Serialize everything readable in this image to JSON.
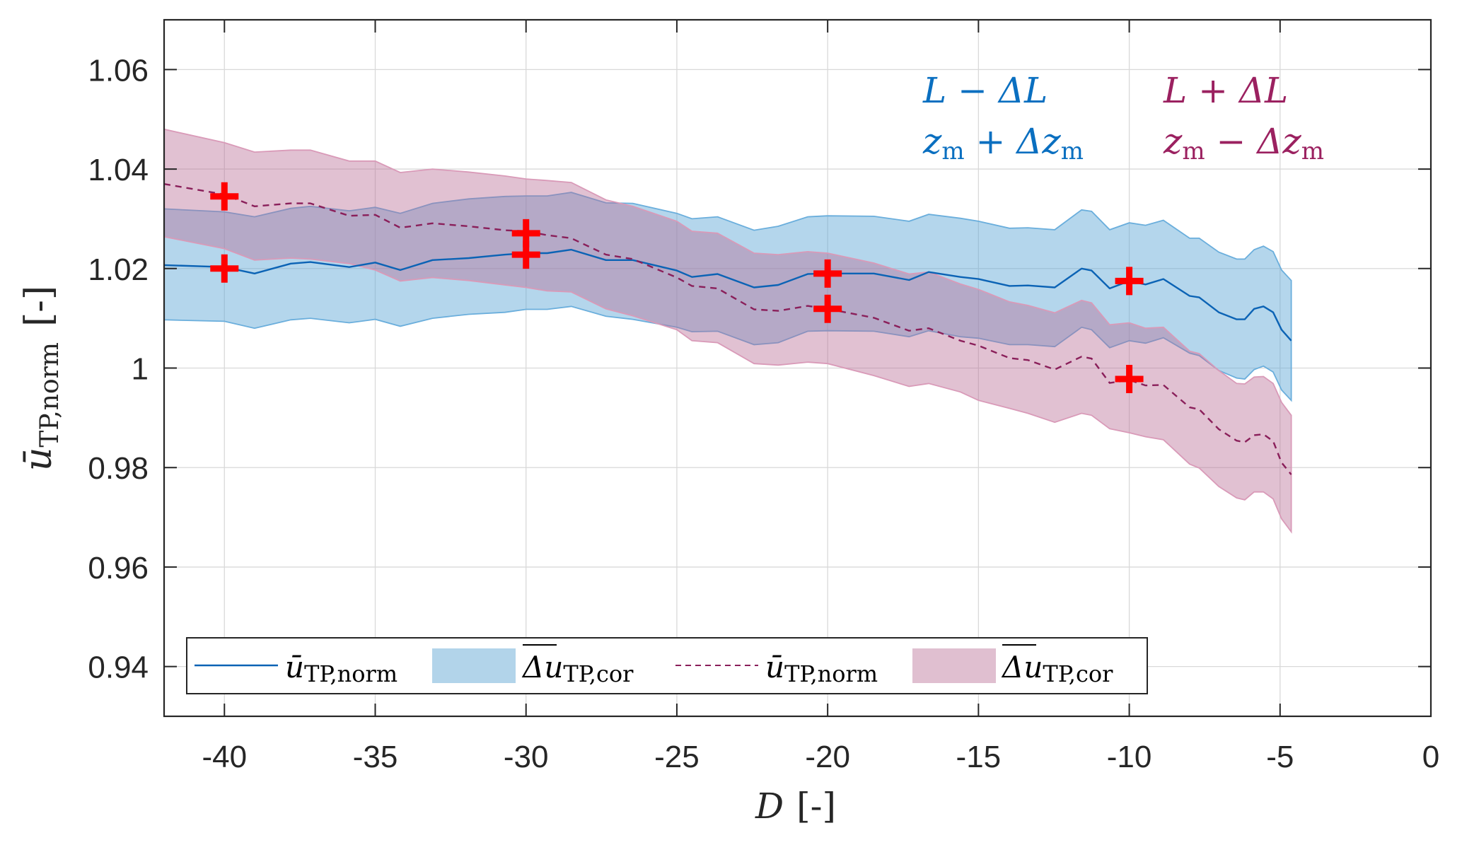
{
  "chart_data": {
    "type": "area",
    "title": "",
    "xlabel": "D [-]",
    "xlabel_parts": {
      "var": "D",
      "unit": "[-]"
    },
    "ylabel": "ū_TP,norm [-]",
    "ylabel_parts": {
      "var": "ū",
      "sub": "TP,norm",
      "unit": "[-]"
    },
    "xlim": [
      -42,
      0
    ],
    "ylim": [
      0.93,
      1.07
    ],
    "grid": true,
    "xticks": [
      -40,
      -35,
      -30,
      -25,
      -20,
      -15,
      -10,
      -5,
      0
    ],
    "xtick_labels": [
      "-40",
      "-35",
      "-30",
      "-25",
      "-20",
      "-15",
      "-10",
      "-5",
      "0"
    ],
    "yticks": [
      0.94,
      0.96,
      0.98,
      1.0,
      1.02,
      1.04,
      1.06
    ],
    "ytick_labels": [
      "0.94",
      "0.96",
      "0.98",
      "1",
      "1.02",
      "1.04",
      "1.06"
    ],
    "legend_position": "bottom-left",
    "legend": [
      {
        "kind": "line",
        "style": "solid",
        "color": "#0b63b5",
        "label_main": "ū",
        "label_sub": "TP,norm"
      },
      {
        "kind": "patch",
        "color": "#b2d4ea",
        "label_main": "Δu",
        "label_sub": "TP,cor"
      },
      {
        "kind": "line",
        "style": "dashed",
        "color": "#8a1f5a",
        "label_main": "ū",
        "label_sub": "TP,norm"
      },
      {
        "kind": "patch",
        "color": "#e0bfd0",
        "label_main": "Δu",
        "label_sub": "TP,cor"
      }
    ],
    "annotations": [
      {
        "color": "#0a6fc0",
        "line1": "L − ΔL",
        "line2_main": "z",
        "line2_sub": "m",
        "line2_op": " + Δz",
        "line2_sub2": "m"
      },
      {
        "color": "#9b2160",
        "line1": "L + ΔL",
        "line2_main": "z",
        "line2_sub": "m",
        "line2_op": " − Δz",
        "line2_sub2": "m"
      }
    ],
    "series": [
      {
        "name": "L − ΔL, z_m + Δz_m (mean)",
        "color": "#0b63b5",
        "style": "solid",
        "x": [
          -42,
          -40,
          -39.0,
          -37.8,
          -37.15,
          -35.86,
          -35.0,
          -34.17,
          -33.1,
          -31.9,
          -30.7,
          -30.0,
          -29.3,
          -28.5,
          -27.35,
          -26.46,
          -25.0,
          -24.5,
          -23.65,
          -22.44,
          -21.64,
          -20.66,
          -20.0,
          -18.47,
          -17.3,
          -16.65,
          -15.6,
          -15.0,
          -13.97,
          -13.36,
          -12.47,
          -11.58,
          -11.25,
          -10.65,
          -10.0,
          -9.46,
          -8.87,
          -8.0,
          -7.68,
          -7.03,
          -6.44,
          -6.17,
          -5.86,
          -5.55,
          -5.23,
          -4.95,
          -4.63
        ],
        "y": [
          1.0207,
          1.0203,
          1.019,
          1.021,
          1.0213,
          1.0203,
          1.0212,
          1.0197,
          1.0217,
          1.0221,
          1.0228,
          1.0231,
          1.0231,
          1.0238,
          1.0217,
          1.0217,
          1.0196,
          1.0183,
          1.0189,
          1.0162,
          1.0167,
          1.0189,
          1.019,
          1.019,
          1.0177,
          1.0193,
          1.0183,
          1.0179,
          1.0165,
          1.0166,
          1.0162,
          1.02,
          1.0196,
          1.016,
          1.0175,
          1.0168,
          1.0179,
          1.0145,
          1.0142,
          1.0112,
          1.0098,
          1.0098,
          1.0119,
          1.0124,
          1.0112,
          1.0077,
          1.0055
        ],
        "band_upper": [
          1.032,
          1.0314,
          1.0304,
          1.0321,
          1.0325,
          1.0316,
          1.0323,
          1.0311,
          1.0331,
          1.034,
          1.0345,
          1.0346,
          1.0346,
          1.0353,
          1.0332,
          1.0331,
          1.0311,
          1.03,
          1.0304,
          1.0277,
          1.0285,
          1.0304,
          1.0306,
          1.0305,
          1.0295,
          1.0309,
          1.0301,
          1.0295,
          1.0281,
          1.0282,
          1.0278,
          1.0318,
          1.0315,
          1.0278,
          1.0292,
          1.0287,
          1.0297,
          1.0261,
          1.0261,
          1.0233,
          1.0219,
          1.0219,
          1.0238,
          1.0245,
          1.0234,
          1.0197,
          1.0176
        ],
        "band_lower": [
          1.0097,
          1.0094,
          1.008,
          1.0097,
          1.01,
          1.0091,
          1.0098,
          1.0084,
          1.01,
          1.0108,
          1.0112,
          1.0118,
          1.0118,
          1.0124,
          1.0104,
          1.0098,
          1.0082,
          1.0073,
          1.0074,
          1.0047,
          1.0051,
          1.0074,
          1.0075,
          1.0074,
          1.0063,
          1.0075,
          1.0063,
          1.006,
          1.0047,
          1.0047,
          1.0043,
          1.0082,
          1.0077,
          1.0041,
          1.0055,
          1.005,
          1.0061,
          1.003,
          1.0025,
          0.9995,
          0.998,
          0.9978,
          0.9997,
          1.0004,
          0.9992,
          0.9956,
          0.9935
        ]
      },
      {
        "name": "L + ΔL, z_m − Δz_m (mean)",
        "color": "#8a1f5a",
        "style": "dashed",
        "x": [
          -42,
          -40,
          -39.0,
          -37.8,
          -37.15,
          -35.86,
          -35.0,
          -34.17,
          -33.1,
          -31.9,
          -30.7,
          -30.0,
          -29.3,
          -28.5,
          -27.35,
          -26.46,
          -25.0,
          -24.5,
          -23.65,
          -22.44,
          -21.64,
          -20.66,
          -20.0,
          -18.47,
          -17.3,
          -16.65,
          -15.6,
          -15.0,
          -13.97,
          -13.36,
          -12.47,
          -11.58,
          -11.25,
          -10.65,
          -10.0,
          -9.46,
          -8.87,
          -8.0,
          -7.68,
          -7.03,
          -6.44,
          -6.17,
          -5.86,
          -5.55,
          -5.23,
          -4.95,
          -4.63
        ],
        "y": [
          1.037,
          1.0349,
          1.0325,
          1.0331,
          1.0331,
          1.0306,
          1.0308,
          1.0282,
          1.0291,
          1.0285,
          1.0277,
          1.0275,
          1.0267,
          1.0261,
          1.0228,
          1.0219,
          1.0182,
          1.0165,
          1.016,
          1.0118,
          1.0115,
          1.0125,
          1.0119,
          1.0101,
          1.0075,
          1.008,
          1.0055,
          1.0045,
          1.002,
          1.0016,
          0.9997,
          1.0023,
          1.0019,
          0.997,
          0.9976,
          0.9965,
          0.9966,
          0.9921,
          0.9917,
          0.9877,
          0.9854,
          0.9851,
          0.9865,
          0.9867,
          0.9853,
          0.981,
          0.9786
        ],
        "band_upper": [
          1.048,
          1.0453,
          1.0434,
          1.0438,
          1.0438,
          1.0416,
          1.0416,
          1.0393,
          1.04,
          1.0394,
          1.0386,
          1.038,
          1.0377,
          1.0373,
          1.0338,
          1.0325,
          1.0295,
          1.0275,
          1.0271,
          1.0231,
          1.0228,
          1.0234,
          1.0231,
          1.0211,
          1.0189,
          1.0193,
          1.0169,
          1.0158,
          1.0133,
          1.0126,
          1.0111,
          1.0136,
          1.0131,
          1.0087,
          1.0091,
          1.008,
          1.0082,
          1.0034,
          1.0029,
          0.9995,
          0.9969,
          0.9968,
          0.9982,
          0.9983,
          0.9969,
          0.9931,
          0.9905
        ],
        "band_lower": [
          1.0264,
          1.024,
          1.0217,
          1.0221,
          1.0219,
          1.021,
          1.0197,
          1.0175,
          1.0182,
          1.0176,
          1.0167,
          1.0162,
          1.0155,
          1.0153,
          1.0119,
          1.0105,
          1.0077,
          1.0055,
          1.0051,
          1.0009,
          1.0006,
          1.0012,
          1.0009,
          0.9985,
          0.9963,
          0.9969,
          0.9952,
          0.9935,
          0.9919,
          0.9909,
          0.9891,
          0.9909,
          0.9905,
          0.9878,
          0.987,
          0.9862,
          0.9856,
          0.9807,
          0.9799,
          0.9762,
          0.9739,
          0.9735,
          0.9751,
          0.9751,
          0.9737,
          0.9697,
          0.9671
        ]
      }
    ],
    "markers": {
      "symbol": "+",
      "color": "#ff0000",
      "points": [
        {
          "x": -40,
          "y": 1.0345
        },
        {
          "x": -40,
          "y": 1.02
        },
        {
          "x": -30,
          "y": 1.0271
        },
        {
          "x": -30,
          "y": 1.0228
        },
        {
          "x": -20,
          "y": 1.019
        },
        {
          "x": -20,
          "y": 1.0119
        },
        {
          "x": -10,
          "y": 1.0175
        },
        {
          "x": -10,
          "y": 0.9978
        }
      ]
    }
  }
}
